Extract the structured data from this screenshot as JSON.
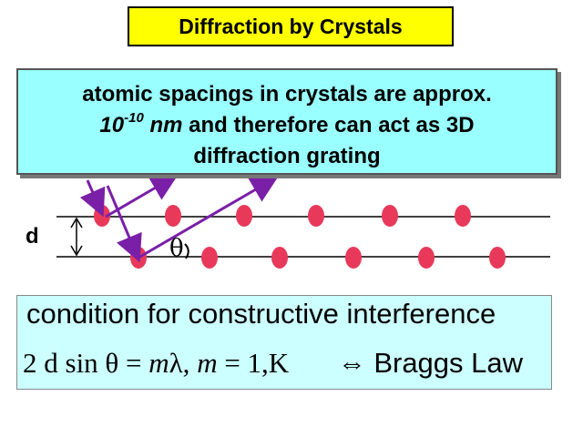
{
  "title": "Diffraction by Crystals",
  "note": {
    "line1": "atomic spacings in crystals are approx.",
    "line2_num": "10",
    "line2_exp": "-10",
    "line2_unit": "nm",
    "line2_rest": " and therefore can act as 3D",
    "line3": "diffraction grating"
  },
  "diagram": {
    "d_label": "d",
    "theta_label": "θ"
  },
  "bragg": {
    "condition": "condition for constructive interference",
    "eq_lhs": "2 d sin θ = ",
    "eq_m": "m",
    "eq_lambda": "λ,  ",
    "eq_m2": "m",
    "eq_rest": " = 1,K",
    "eq_arrow": "⇔",
    "eq_law": " Braggs Law"
  },
  "colors": {
    "atom": "#e8395a",
    "ray": "#7a1fa8",
    "title_bg": "#ffff00",
    "note_bg": "#99ffff",
    "bragg_bg": "#ccffff"
  }
}
